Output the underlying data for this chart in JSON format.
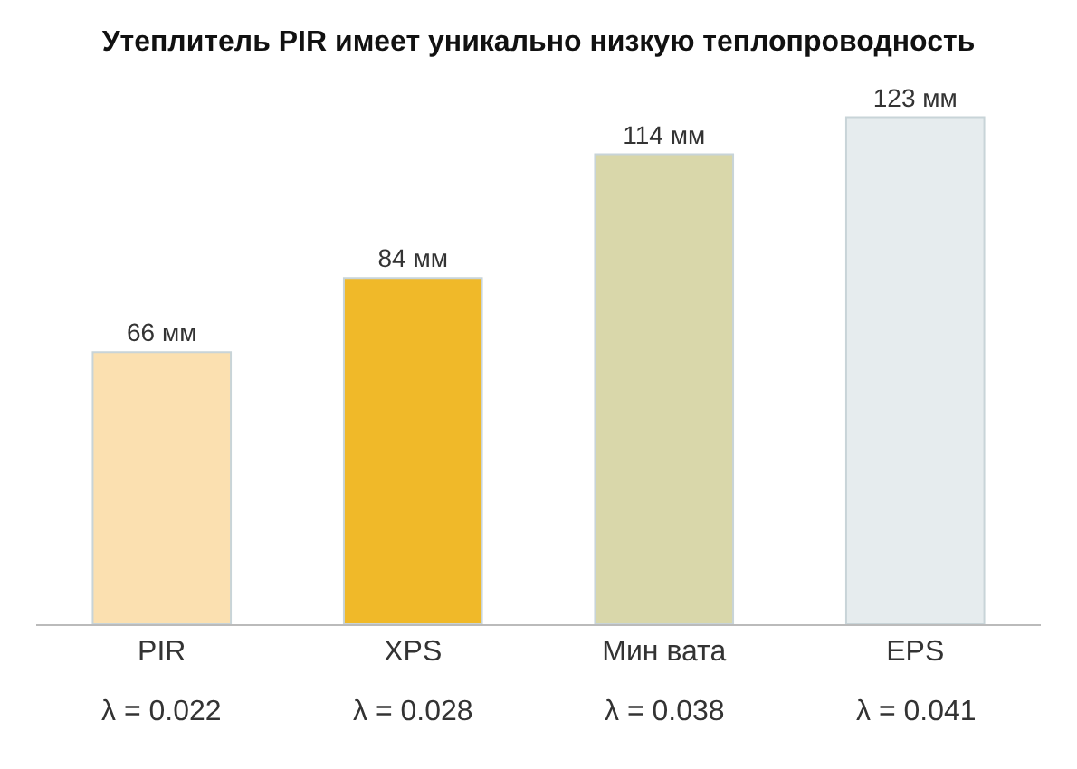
{
  "chart_data": {
    "type": "bar",
    "title": "Утеплитель PIR имеет уникально низкую теплопроводность",
    "categories": [
      "PIR",
      "XPS",
      "Мин вата",
      "EPS"
    ],
    "values": [
      66,
      84,
      114,
      123
    ],
    "value_labels": [
      "66 мм",
      "84 мм",
      "114 мм",
      "123 мм"
    ],
    "colors": [
      "#fbe0b0",
      "#f0b929",
      "#d9d7aa",
      "#e6ecee"
    ],
    "annotations": [
      "λ = 0.022",
      "λ = 0.028",
      "λ = 0.038",
      "λ = 0.041"
    ],
    "grid": false,
    "legend": false
  }
}
